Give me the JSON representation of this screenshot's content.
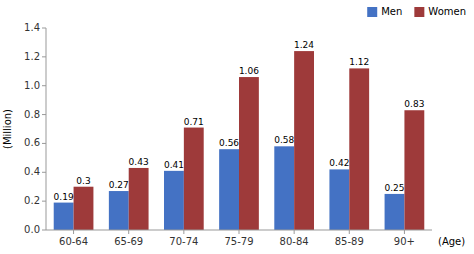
{
  "chart_data": {
    "type": "bar",
    "categories": [
      "60-64",
      "65-69",
      "70-74",
      "75-79",
      "80-84",
      "85-89",
      "90+"
    ],
    "series": [
      {
        "name": "Men",
        "color": "#4472C4",
        "values": [
          0.19,
          0.27,
          0.41,
          0.56,
          0.58,
          0.42,
          0.25
        ]
      },
      {
        "name": "Women",
        "color": "#9E3A3A",
        "values": [
          0.3,
          0.43,
          0.71,
          1.06,
          1.24,
          1.12,
          0.83
        ]
      }
    ],
    "ylabel": "(Million)",
    "xlabel": "(Age)",
    "ylim": [
      0,
      1.4
    ],
    "yticks": [
      {
        "value": 0.0,
        "label": "0.0"
      },
      0.2,
      0.4,
      0.6,
      0.8,
      {
        "value": 1.0,
        "label": "1.0"
      },
      1.2,
      1.4
    ],
    "grid": false,
    "legend": "upper right",
    "data_labels": true
  }
}
